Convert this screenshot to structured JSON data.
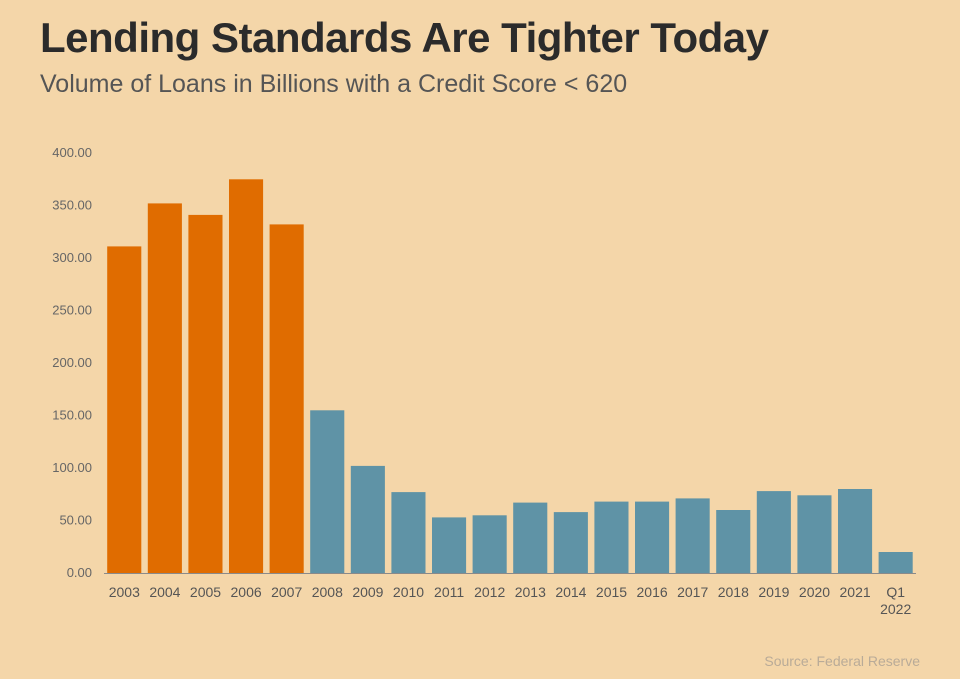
{
  "chart_data": {
    "type": "bar",
    "title": "Lending Standards Are Tighter Today",
    "subtitle": "Volume of Loans in Billions with a Credit Score < 620",
    "source": "Source: Federal Reserve",
    "xlabel": "",
    "ylabel": "",
    "ylim": [
      0,
      400
    ],
    "yticks": [
      "0.00",
      "50.00",
      "100.00",
      "150.00",
      "200.00",
      "250.00",
      "300.00",
      "350.00",
      "400.00"
    ],
    "categories": [
      "2003",
      "2004",
      "2005",
      "2006",
      "2007",
      "2008",
      "2009",
      "2010",
      "2011",
      "2012",
      "2013",
      "2014",
      "2015",
      "2016",
      "2017",
      "2018",
      "2019",
      "2020",
      "2021",
      "Q1 2022"
    ],
    "values": [
      311,
      352,
      341,
      375,
      332,
      155,
      102,
      77,
      53,
      55,
      67,
      58,
      68,
      68,
      71,
      60,
      78,
      74,
      80,
      20
    ],
    "highlight_count": 5,
    "colors": {
      "highlight": "#e06c00",
      "normal": "#5f93a6"
    },
    "grid": false,
    "legend": "none"
  }
}
